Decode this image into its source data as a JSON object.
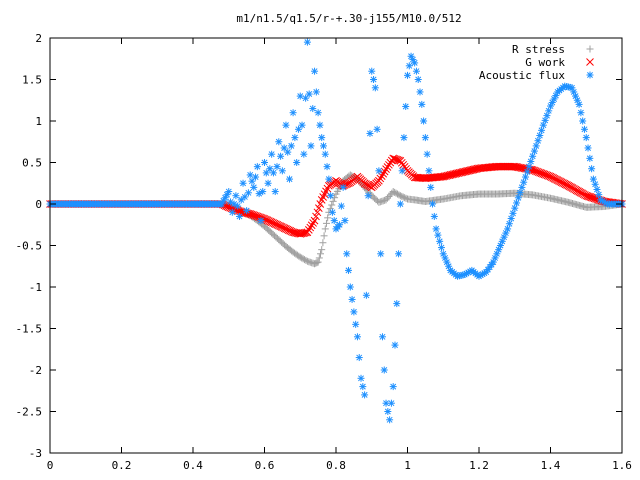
{
  "chart_data": {
    "type": "scatter",
    "title": "m1/n1.5/q1.5/r-+.30-j155/M10.0/512",
    "xlabel": "",
    "ylabel": "",
    "xlim": [
      0,
      1.6
    ],
    "ylim": [
      -3,
      2
    ],
    "grid": false,
    "legend_position": "top-right",
    "x_ticks": [
      "0",
      "0.2",
      "0.4",
      "0.6",
      "0.8",
      "1",
      "1.2",
      "1.4",
      "1.6"
    ],
    "y_ticks": [
      "2",
      "1.5",
      "1",
      "0.5",
      "0",
      "-0.5",
      "-1",
      "-1.5",
      "-2",
      "-2.5",
      "-3"
    ],
    "series": [
      {
        "name": "R stress",
        "marker": "plus",
        "color": "#a0a0a0",
        "x": [
          0.0,
          0.2,
          0.4,
          0.48,
          0.5,
          0.52,
          0.54,
          0.56,
          0.58,
          0.6,
          0.62,
          0.64,
          0.66,
          0.68,
          0.7,
          0.72,
          0.74,
          0.75,
          0.76,
          0.77,
          0.78,
          0.8,
          0.82,
          0.84,
          0.86,
          0.88,
          0.9,
          0.92,
          0.94,
          0.96,
          0.98,
          1.0,
          1.02,
          1.05,
          1.1,
          1.15,
          1.2,
          1.25,
          1.3,
          1.35,
          1.4,
          1.45,
          1.5,
          1.55,
          1.6
        ],
        "y": [
          0.0,
          0.0,
          0.0,
          0.0,
          -0.02,
          -0.06,
          -0.1,
          -0.14,
          -0.2,
          -0.27,
          -0.35,
          -0.43,
          -0.51,
          -0.58,
          -0.64,
          -0.69,
          -0.72,
          -0.7,
          -0.55,
          -0.3,
          -0.1,
          0.12,
          0.28,
          0.35,
          0.3,
          0.2,
          0.1,
          0.02,
          0.05,
          0.15,
          0.1,
          0.06,
          0.05,
          0.03,
          0.06,
          0.1,
          0.12,
          0.12,
          0.13,
          0.11,
          0.07,
          0.02,
          -0.04,
          -0.03,
          0.0
        ]
      },
      {
        "name": "G work",
        "marker": "cross",
        "color": "#ff0000",
        "x": [
          0.0,
          0.2,
          0.4,
          0.48,
          0.5,
          0.52,
          0.54,
          0.56,
          0.58,
          0.6,
          0.62,
          0.64,
          0.66,
          0.68,
          0.7,
          0.72,
          0.74,
          0.76,
          0.78,
          0.8,
          0.82,
          0.84,
          0.86,
          0.88,
          0.9,
          0.92,
          0.94,
          0.96,
          0.98,
          1.0,
          1.02,
          1.05,
          1.1,
          1.15,
          1.2,
          1.25,
          1.3,
          1.35,
          1.4,
          1.45,
          1.5,
          1.55,
          1.6
        ],
        "y": [
          0.0,
          0.0,
          0.0,
          0.0,
          -0.04,
          -0.07,
          -0.1,
          -0.12,
          -0.15,
          -0.18,
          -0.22,
          -0.26,
          -0.3,
          -0.34,
          -0.36,
          -0.34,
          -0.2,
          0.05,
          0.22,
          0.28,
          0.22,
          0.26,
          0.33,
          0.25,
          0.2,
          0.28,
          0.42,
          0.55,
          0.52,
          0.4,
          0.32,
          0.31,
          0.33,
          0.38,
          0.43,
          0.45,
          0.45,
          0.41,
          0.33,
          0.22,
          0.1,
          0.03,
          0.0
        ]
      },
      {
        "name": "Acoustic flux",
        "marker": "star",
        "color": "#1e90ff",
        "x": [
          0.0,
          0.1,
          0.2,
          0.3,
          0.4,
          0.48,
          0.5,
          0.51,
          0.52,
          0.53,
          0.54,
          0.55,
          0.56,
          0.57,
          0.58,
          0.59,
          0.6,
          0.61,
          0.62,
          0.63,
          0.64,
          0.65,
          0.66,
          0.67,
          0.68,
          0.69,
          0.7,
          0.71,
          0.72,
          0.73,
          0.74,
          0.75,
          0.76,
          0.77,
          0.78,
          0.79,
          0.8,
          0.81,
          0.82,
          0.83,
          0.84,
          0.85,
          0.86,
          0.87,
          0.88,
          0.89,
          0.9,
          0.91,
          0.92,
          0.93,
          0.94,
          0.95,
          0.96,
          0.97,
          0.98,
          0.99,
          1.0,
          1.01,
          1.02,
          1.03,
          1.04,
          1.05,
          1.06,
          1.07,
          1.08,
          1.1,
          1.12,
          1.14,
          1.16,
          1.18,
          1.2,
          1.22,
          1.24,
          1.26,
          1.28,
          1.3,
          1.32,
          1.34,
          1.36,
          1.38,
          1.4,
          1.42,
          1.44,
          1.46,
          1.48,
          1.5,
          1.52,
          1.54,
          1.56,
          1.58,
          1.6
        ],
        "y": [
          0.0,
          0.0,
          0.0,
          0.0,
          0.0,
          0.0,
          0.15,
          -0.1,
          0.1,
          -0.15,
          0.25,
          -0.08,
          0.35,
          0.2,
          0.45,
          -0.2,
          0.5,
          0.25,
          0.6,
          0.15,
          0.75,
          0.4,
          0.95,
          0.3,
          1.1,
          0.5,
          1.3,
          0.6,
          1.95,
          0.7,
          1.6,
          1.1,
          0.8,
          0.6,
          0.3,
          -0.1,
          -0.3,
          -0.25,
          0.2,
          -0.6,
          -1.0,
          -1.3,
          -1.6,
          -2.1,
          -2.3,
          0.1,
          1.6,
          1.4,
          0.4,
          -1.6,
          -2.4,
          -2.6,
          -2.2,
          -1.2,
          0.0,
          0.8,
          1.55,
          1.78,
          1.7,
          1.5,
          1.2,
          0.8,
          0.4,
          0.0,
          -0.3,
          -0.6,
          -0.8,
          -0.87,
          -0.85,
          -0.8,
          -0.87,
          -0.82,
          -0.7,
          -0.5,
          -0.3,
          -0.05,
          0.2,
          0.45,
          0.7,
          0.95,
          1.18,
          1.35,
          1.42,
          1.4,
          1.2,
          0.8,
          0.3,
          0.05,
          0.0,
          0.0,
          0.0
        ]
      }
    ]
  }
}
